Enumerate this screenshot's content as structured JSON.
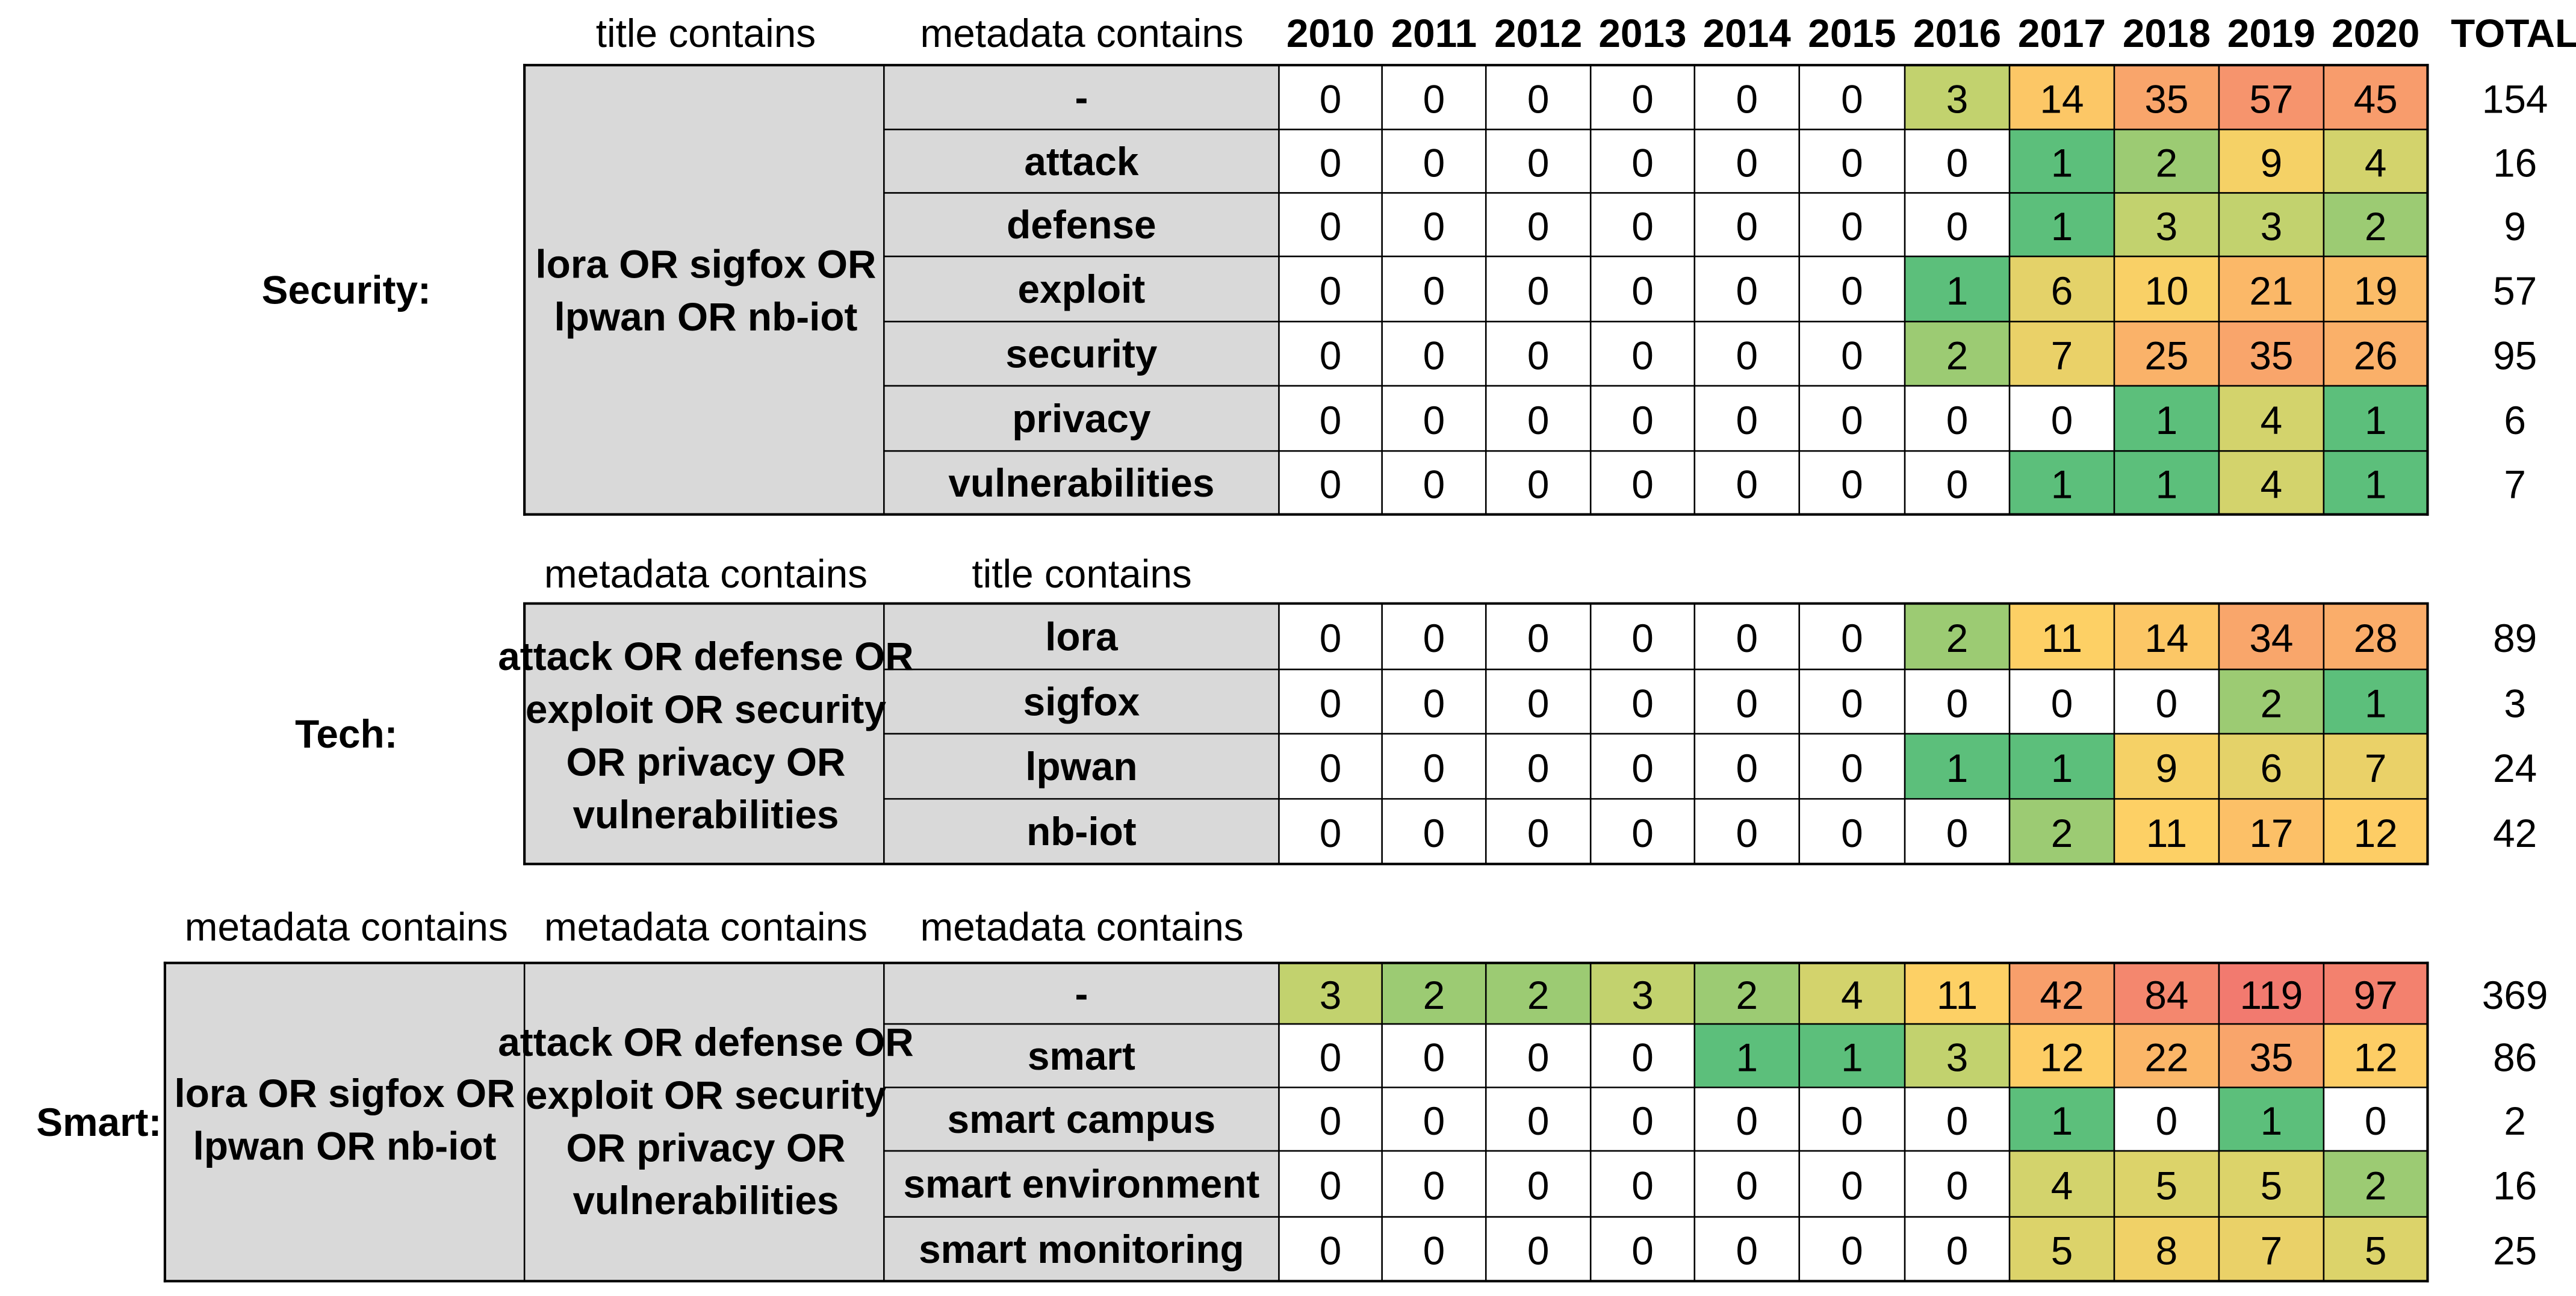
{
  "years": [
    "2010",
    "2011",
    "2012",
    "2013",
    "2014",
    "2015",
    "2016",
    "2017",
    "2018",
    "2019",
    "2020"
  ],
  "total_label": "TOTAL",
  "colors": {
    "group_fill": "#d9d9d9",
    "zero_fill": "#ffffff",
    "scale": [
      "#5cbf7b",
      "#cbd46d",
      "#fdd065",
      "#f9a46b",
      "#f27a6f"
    ]
  },
  "chart_data": {
    "type": "table",
    "title": "",
    "columns": [
      "2010",
      "2011",
      "2012",
      "2013",
      "2014",
      "2015",
      "2016",
      "2017",
      "2018",
      "2019",
      "2020",
      "TOTAL"
    ],
    "sections": [
      {
        "label": "Security:",
        "col_headers": [
          "title contains",
          "metadata contains"
        ],
        "group": "lora OR sigfox OR lpwan OR nb-iot",
        "rows": [
          {
            "term": "-",
            "values": [
              0,
              0,
              0,
              0,
              0,
              0,
              3,
              14,
              35,
              57,
              45
            ],
            "total": 154
          },
          {
            "term": "attack",
            "values": [
              0,
              0,
              0,
              0,
              0,
              0,
              0,
              1,
              2,
              9,
              4
            ],
            "total": 16
          },
          {
            "term": "defense",
            "values": [
              0,
              0,
              0,
              0,
              0,
              0,
              0,
              1,
              3,
              3,
              2
            ],
            "total": 9
          },
          {
            "term": "exploit",
            "values": [
              0,
              0,
              0,
              0,
              0,
              0,
              1,
              6,
              10,
              21,
              19
            ],
            "total": 57
          },
          {
            "term": "security",
            "values": [
              0,
              0,
              0,
              0,
              0,
              0,
              2,
              7,
              25,
              35,
              26
            ],
            "total": 95
          },
          {
            "term": "privacy",
            "values": [
              0,
              0,
              0,
              0,
              0,
              0,
              0,
              0,
              1,
              4,
              1
            ],
            "total": 6
          },
          {
            "term": "vulnerabilities",
            "values": [
              0,
              0,
              0,
              0,
              0,
              0,
              0,
              1,
              1,
              4,
              1
            ],
            "total": 7
          }
        ]
      },
      {
        "label": "Tech:",
        "col_headers": [
          "metadata contains",
          "title contains"
        ],
        "group": "attack OR defense OR exploit OR security OR privacy OR vulnerabilities",
        "rows": [
          {
            "term": "lora",
            "values": [
              0,
              0,
              0,
              0,
              0,
              0,
              2,
              11,
              14,
              34,
              28
            ],
            "total": 89
          },
          {
            "term": "sigfox",
            "values": [
              0,
              0,
              0,
              0,
              0,
              0,
              0,
              0,
              0,
              2,
              1
            ],
            "total": 3
          },
          {
            "term": "lpwan",
            "values": [
              0,
              0,
              0,
              0,
              0,
              0,
              1,
              1,
              9,
              6,
              7
            ],
            "total": 24
          },
          {
            "term": "nb-iot",
            "values": [
              0,
              0,
              0,
              0,
              0,
              0,
              0,
              2,
              11,
              17,
              12
            ],
            "total": 42
          }
        ]
      },
      {
        "label": "Smart:",
        "col_headers": [
          "metadata contains",
          "metadata contains",
          "metadata contains"
        ],
        "group_outer": "lora OR sigfox OR lpwan OR nb-iot",
        "group": "attack OR defense OR exploit OR security OR privacy OR vulnerabilities",
        "rows": [
          {
            "term": "-",
            "values": [
              3,
              2,
              2,
              3,
              2,
              4,
              11,
              42,
              84,
              119,
              97
            ],
            "total": 369
          },
          {
            "term": "smart",
            "values": [
              0,
              0,
              0,
              0,
              1,
              1,
              3,
              12,
              22,
              35,
              12
            ],
            "total": 86
          },
          {
            "term": "smart campus",
            "values": [
              0,
              0,
              0,
              0,
              0,
              0,
              0,
              1,
              0,
              1,
              0
            ],
            "total": 2
          },
          {
            "term": "smart environment",
            "values": [
              0,
              0,
              0,
              0,
              0,
              0,
              0,
              4,
              5,
              5,
              2
            ],
            "total": 16
          },
          {
            "term": "smart monitoring",
            "values": [
              0,
              0,
              0,
              0,
              0,
              0,
              0,
              5,
              8,
              7,
              5
            ],
            "total": 25
          }
        ]
      }
    ]
  }
}
